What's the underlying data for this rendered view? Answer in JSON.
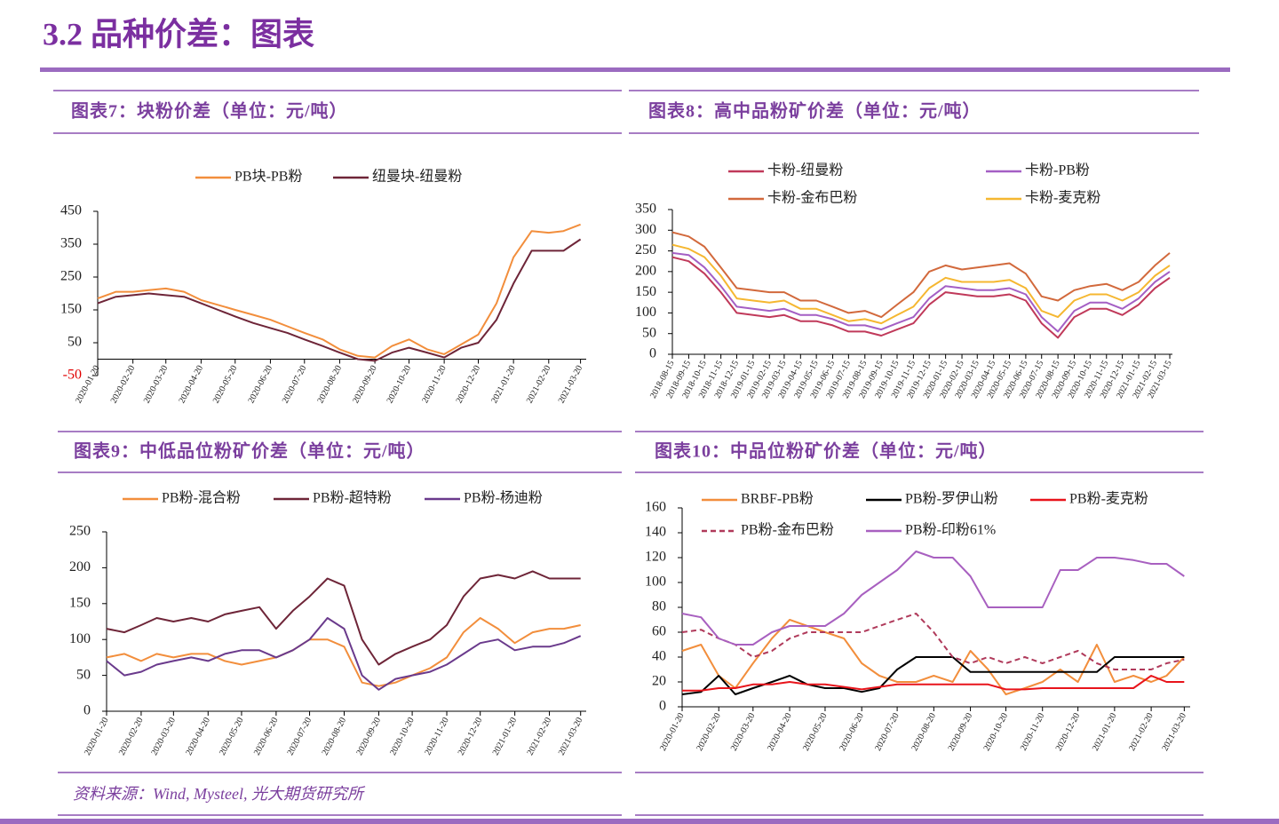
{
  "page_title": "3.2 品种价差：图表",
  "source": "资料来源：Wind, Mysteel, 光大期货研究所",
  "chart_data": [
    {
      "type": "line",
      "title": "图表7：块粉价差（单位：元/吨）",
      "x": [
        "2020-01-20",
        "2020-02-05",
        "2020-02-20",
        "2020-03-05",
        "2020-03-20",
        "2020-04-05",
        "2020-04-20",
        "2020-05-05",
        "2020-05-20",
        "2020-06-05",
        "2020-06-20",
        "2020-07-05",
        "2020-07-20",
        "2020-08-05",
        "2020-08-20",
        "2020-09-05",
        "2020-09-20",
        "2020-10-05",
        "2020-10-20",
        "2020-11-05",
        "2020-11-20",
        "2020-12-05",
        "2020-12-20",
        "2021-01-05",
        "2021-01-20",
        "2021-02-05",
        "2021-02-20",
        "2021-03-05",
        "2021-03-20"
      ],
      "xlim": [
        "2020-01-20",
        "2021-03-25"
      ],
      "xticks": [
        "2020-01-20",
        "2020-02-20",
        "2020-03-20",
        "2020-04-20",
        "2020-05-20",
        "2020-06-20",
        "2020-07-20",
        "2020-08-20",
        "2020-09-20",
        "2020-10-20",
        "2020-11-20",
        "2020-12-20",
        "2021-01-20",
        "2021-02-20",
        "2021-03-20"
      ],
      "ylim": [
        -50,
        450
      ],
      "yticks": [
        -50,
        50,
        150,
        250,
        350,
        450
      ],
      "negative_tick_color": "#e00000",
      "grid": false,
      "series": [
        {
          "name": "PB块-PB粉",
          "color": "#f28e3c",
          "values": [
            185,
            205,
            205,
            210,
            215,
            205,
            180,
            165,
            150,
            135,
            120,
            100,
            80,
            60,
            30,
            10,
            5,
            40,
            60,
            30,
            15,
            45,
            75,
            170,
            310,
            390,
            385,
            390,
            410
          ]
        },
        {
          "name": "纽曼块-纽曼粉",
          "color": "#6e2538",
          "values": [
            170,
            190,
            195,
            200,
            195,
            190,
            170,
            150,
            130,
            110,
            95,
            80,
            60,
            40,
            20,
            0,
            -5,
            20,
            35,
            20,
            5,
            35,
            50,
            120,
            230,
            330,
            330,
            330,
            365
          ]
        }
      ]
    },
    {
      "type": "line",
      "title": "图表8：高中品粉矿价差（单位：元/吨）",
      "x": [
        "2018-08-15",
        "2018-09-15",
        "2018-10-15",
        "2018-11-15",
        "2018-12-15",
        "2019-01-15",
        "2019-02-15",
        "2019-03-15",
        "2019-04-15",
        "2019-05-15",
        "2019-06-15",
        "2019-07-15",
        "2019-08-15",
        "2019-09-15",
        "2019-10-15",
        "2019-11-15",
        "2019-12-15",
        "2020-01-15",
        "2020-02-15",
        "2020-03-15",
        "2020-04-15",
        "2020-05-15",
        "2020-06-15",
        "2020-07-15",
        "2020-08-15",
        "2020-09-15",
        "2020-10-15",
        "2020-11-15",
        "2020-12-15",
        "2021-01-15",
        "2021-02-15",
        "2021-03-15"
      ],
      "xlim": [
        "2018-08-15",
        "2021-03-20"
      ],
      "xticks": [
        "2018-08-15",
        "2018-09-15",
        "2018-10-15",
        "2018-11-15",
        "2018-12-15",
        "2019-01-15",
        "2019-02-15",
        "2019-03-15",
        "2019-04-15",
        "2019-05-15",
        "2019-06-15",
        "2019-07-15",
        "2019-08-15",
        "2019-09-15",
        "2019-10-15",
        "2019-11-15",
        "2019-12-15",
        "2020-01-15",
        "2020-02-15",
        "2020-03-15",
        "2020-04-15",
        "2020-05-15",
        "2020-06-15",
        "2020-07-15",
        "2020-08-15",
        "2020-09-15",
        "2020-10-15",
        "2020-11-15",
        "2020-12-15",
        "2021-01-15",
        "2021-02-15",
        "2021-03-15"
      ],
      "ylim": [
        0,
        350
      ],
      "yticks": [
        0,
        50,
        100,
        150,
        200,
        250,
        300,
        350
      ],
      "grid": false,
      "series": [
        {
          "name": "卡粉-纽曼粉",
          "color": "#c0395a",
          "values": [
            235,
            225,
            195,
            150,
            100,
            95,
            90,
            95,
            80,
            80,
            70,
            55,
            55,
            45,
            60,
            75,
            120,
            150,
            145,
            140,
            140,
            145,
            130,
            75,
            40,
            90,
            110,
            110,
            95,
            120,
            160,
            185
          ]
        },
        {
          "name": "卡粉-PB粉",
          "color": "#a45fc4",
          "values": [
            245,
            240,
            210,
            165,
            115,
            110,
            105,
            110,
            95,
            95,
            85,
            70,
            70,
            60,
            75,
            90,
            135,
            165,
            160,
            155,
            155,
            160,
            145,
            90,
            55,
            105,
            125,
            125,
            110,
            135,
            175,
            200
          ]
        },
        {
          "name": "卡粉-金布巴粉",
          "color": "#d2693c",
          "values": [
            295,
            285,
            260,
            210,
            160,
            155,
            150,
            150,
            130,
            130,
            115,
            100,
            105,
            90,
            120,
            150,
            200,
            215,
            205,
            210,
            215,
            220,
            195,
            140,
            130,
            155,
            165,
            170,
            155,
            175,
            215,
            245
          ]
        },
        {
          "name": "卡粉-麦克粉",
          "color": "#f5b731",
          "values": [
            265,
            255,
            235,
            190,
            135,
            130,
            125,
            130,
            110,
            110,
            95,
            80,
            85,
            75,
            95,
            115,
            160,
            185,
            175,
            175,
            175,
            180,
            160,
            105,
            90,
            130,
            145,
            145,
            130,
            150,
            190,
            215
          ]
        }
      ]
    },
    {
      "type": "line",
      "title": "图表9：中低品位粉矿价差（单位：元/吨）",
      "x": [
        "2020-01-20",
        "2020-02-05",
        "2020-02-20",
        "2020-03-05",
        "2020-03-20",
        "2020-04-05",
        "2020-04-20",
        "2020-05-05",
        "2020-05-20",
        "2020-06-05",
        "2020-06-20",
        "2020-07-05",
        "2020-07-20",
        "2020-08-05",
        "2020-08-20",
        "2020-09-05",
        "2020-09-20",
        "2020-10-05",
        "2020-10-20",
        "2020-11-05",
        "2020-11-20",
        "2020-12-05",
        "2020-12-20",
        "2021-01-05",
        "2021-01-20",
        "2021-02-05",
        "2021-02-20",
        "2021-03-05",
        "2021-03-20"
      ],
      "xlim": [
        "2020-01-20",
        "2021-03-25"
      ],
      "xticks": [
        "2020-01-20",
        "2020-02-20",
        "2020-03-20",
        "2020-04-20",
        "2020-05-20",
        "2020-06-20",
        "2020-07-20",
        "2020-08-20",
        "2020-09-20",
        "2020-10-20",
        "2020-11-20",
        "2020-12-20",
        "2021-01-20",
        "2021-02-20",
        "2021-03-20"
      ],
      "ylim": [
        0,
        250
      ],
      "yticks": [
        0,
        50,
        100,
        150,
        200,
        250
      ],
      "grid": false,
      "series": [
        {
          "name": "PB粉-混合粉",
          "color": "#f28e3c",
          "values": [
            75,
            80,
            70,
            80,
            75,
            80,
            80,
            70,
            65,
            70,
            75,
            85,
            100,
            100,
            90,
            40,
            35,
            40,
            50,
            60,
            75,
            110,
            130,
            115,
            95,
            110,
            115,
            115,
            120
          ]
        },
        {
          "name": "PB粉-超特粉",
          "color": "#6e2538",
          "values": [
            115,
            110,
            120,
            130,
            125,
            130,
            125,
            135,
            140,
            145,
            115,
            140,
            160,
            185,
            175,
            100,
            65,
            80,
            90,
            100,
            120,
            160,
            185,
            190,
            185,
            195,
            185,
            185,
            185
          ]
        },
        {
          "name": "PB粉-杨迪粉",
          "color": "#6a3a8c",
          "values": [
            70,
            50,
            55,
            65,
            70,
            75,
            70,
            80,
            85,
            85,
            75,
            85,
            100,
            130,
            115,
            50,
            30,
            45,
            50,
            55,
            65,
            80,
            95,
            100,
            85,
            90,
            90,
            95,
            105
          ]
        }
      ]
    },
    {
      "type": "line",
      "title": "图表10：中品位粉矿价差（单位：元/吨）",
      "x": [
        "2020-01-20",
        "2020-02-05",
        "2020-02-20",
        "2020-03-05",
        "2020-03-20",
        "2020-04-05",
        "2020-04-20",
        "2020-05-05",
        "2020-05-20",
        "2020-06-05",
        "2020-06-20",
        "2020-07-05",
        "2020-07-20",
        "2020-08-05",
        "2020-08-20",
        "2020-09-05",
        "2020-09-20",
        "2020-10-05",
        "2020-10-20",
        "2020-11-05",
        "2020-11-20",
        "2020-12-05",
        "2020-12-20",
        "2021-01-05",
        "2021-01-20",
        "2021-02-05",
        "2021-02-20",
        "2021-03-05",
        "2021-03-20"
      ],
      "xlim": [
        "2020-01-20",
        "2021-03-25"
      ],
      "xticks": [
        "2020-01-20",
        "2020-02-20",
        "2020-03-20",
        "2020-04-20",
        "2020-05-20",
        "2020-06-20",
        "2020-07-20",
        "2020-08-20",
        "2020-09-20",
        "2020-10-20",
        "2020-11-20",
        "2020-12-20",
        "2021-01-20",
        "2021-02-20",
        "2021-03-20"
      ],
      "ylim": [
        0,
        160
      ],
      "yticks": [
        0,
        20,
        40,
        60,
        80,
        100,
        120,
        140,
        160
      ],
      "grid": false,
      "series": [
        {
          "name": "BRBF-PB粉",
          "color": "#f28e3c",
          "style": "solid",
          "values": [
            45,
            50,
            25,
            15,
            35,
            55,
            70,
            65,
            60,
            55,
            35,
            25,
            20,
            20,
            25,
            20,
            45,
            30,
            10,
            15,
            20,
            30,
            20,
            50,
            20,
            25,
            20,
            25,
            40
          ]
        },
        {
          "name": "PB粉-罗伊山粉",
          "color": "#000000",
          "style": "solid",
          "values": [
            10,
            12,
            25,
            10,
            15,
            20,
            25,
            18,
            15,
            15,
            12,
            15,
            30,
            40,
            40,
            40,
            28,
            28,
            28,
            28,
            28,
            28,
            28,
            28,
            40,
            40,
            40,
            40,
            40
          ]
        },
        {
          "name": "PB粉-麦克粉",
          "color": "#e8141b",
          "style": "solid",
          "values": [
            13,
            13,
            15,
            15,
            18,
            18,
            20,
            18,
            18,
            16,
            14,
            16,
            18,
            18,
            18,
            18,
            18,
            18,
            14,
            14,
            15,
            15,
            15,
            15,
            15,
            15,
            25,
            20,
            20
          ]
        },
        {
          "name": "PB粉-金布巴粉",
          "color": "#b03a5b",
          "style": "dashed",
          "values": [
            60,
            62,
            55,
            50,
            40,
            45,
            55,
            60,
            60,
            60,
            60,
            65,
            70,
            75,
            60,
            40,
            35,
            40,
            35,
            40,
            35,
            40,
            45,
            35,
            30,
            30,
            30,
            35,
            38
          ]
        },
        {
          "name": "PB粉-印粉61%",
          "color": "#a860c0",
          "style": "solid",
          "values": [
            75,
            72,
            55,
            50,
            50,
            60,
            65,
            65,
            65,
            75,
            90,
            100,
            110,
            125,
            120,
            120,
            105,
            80,
            80,
            80,
            80,
            110,
            110,
            120,
            120,
            118,
            115,
            115,
            105
          ]
        }
      ]
    }
  ]
}
